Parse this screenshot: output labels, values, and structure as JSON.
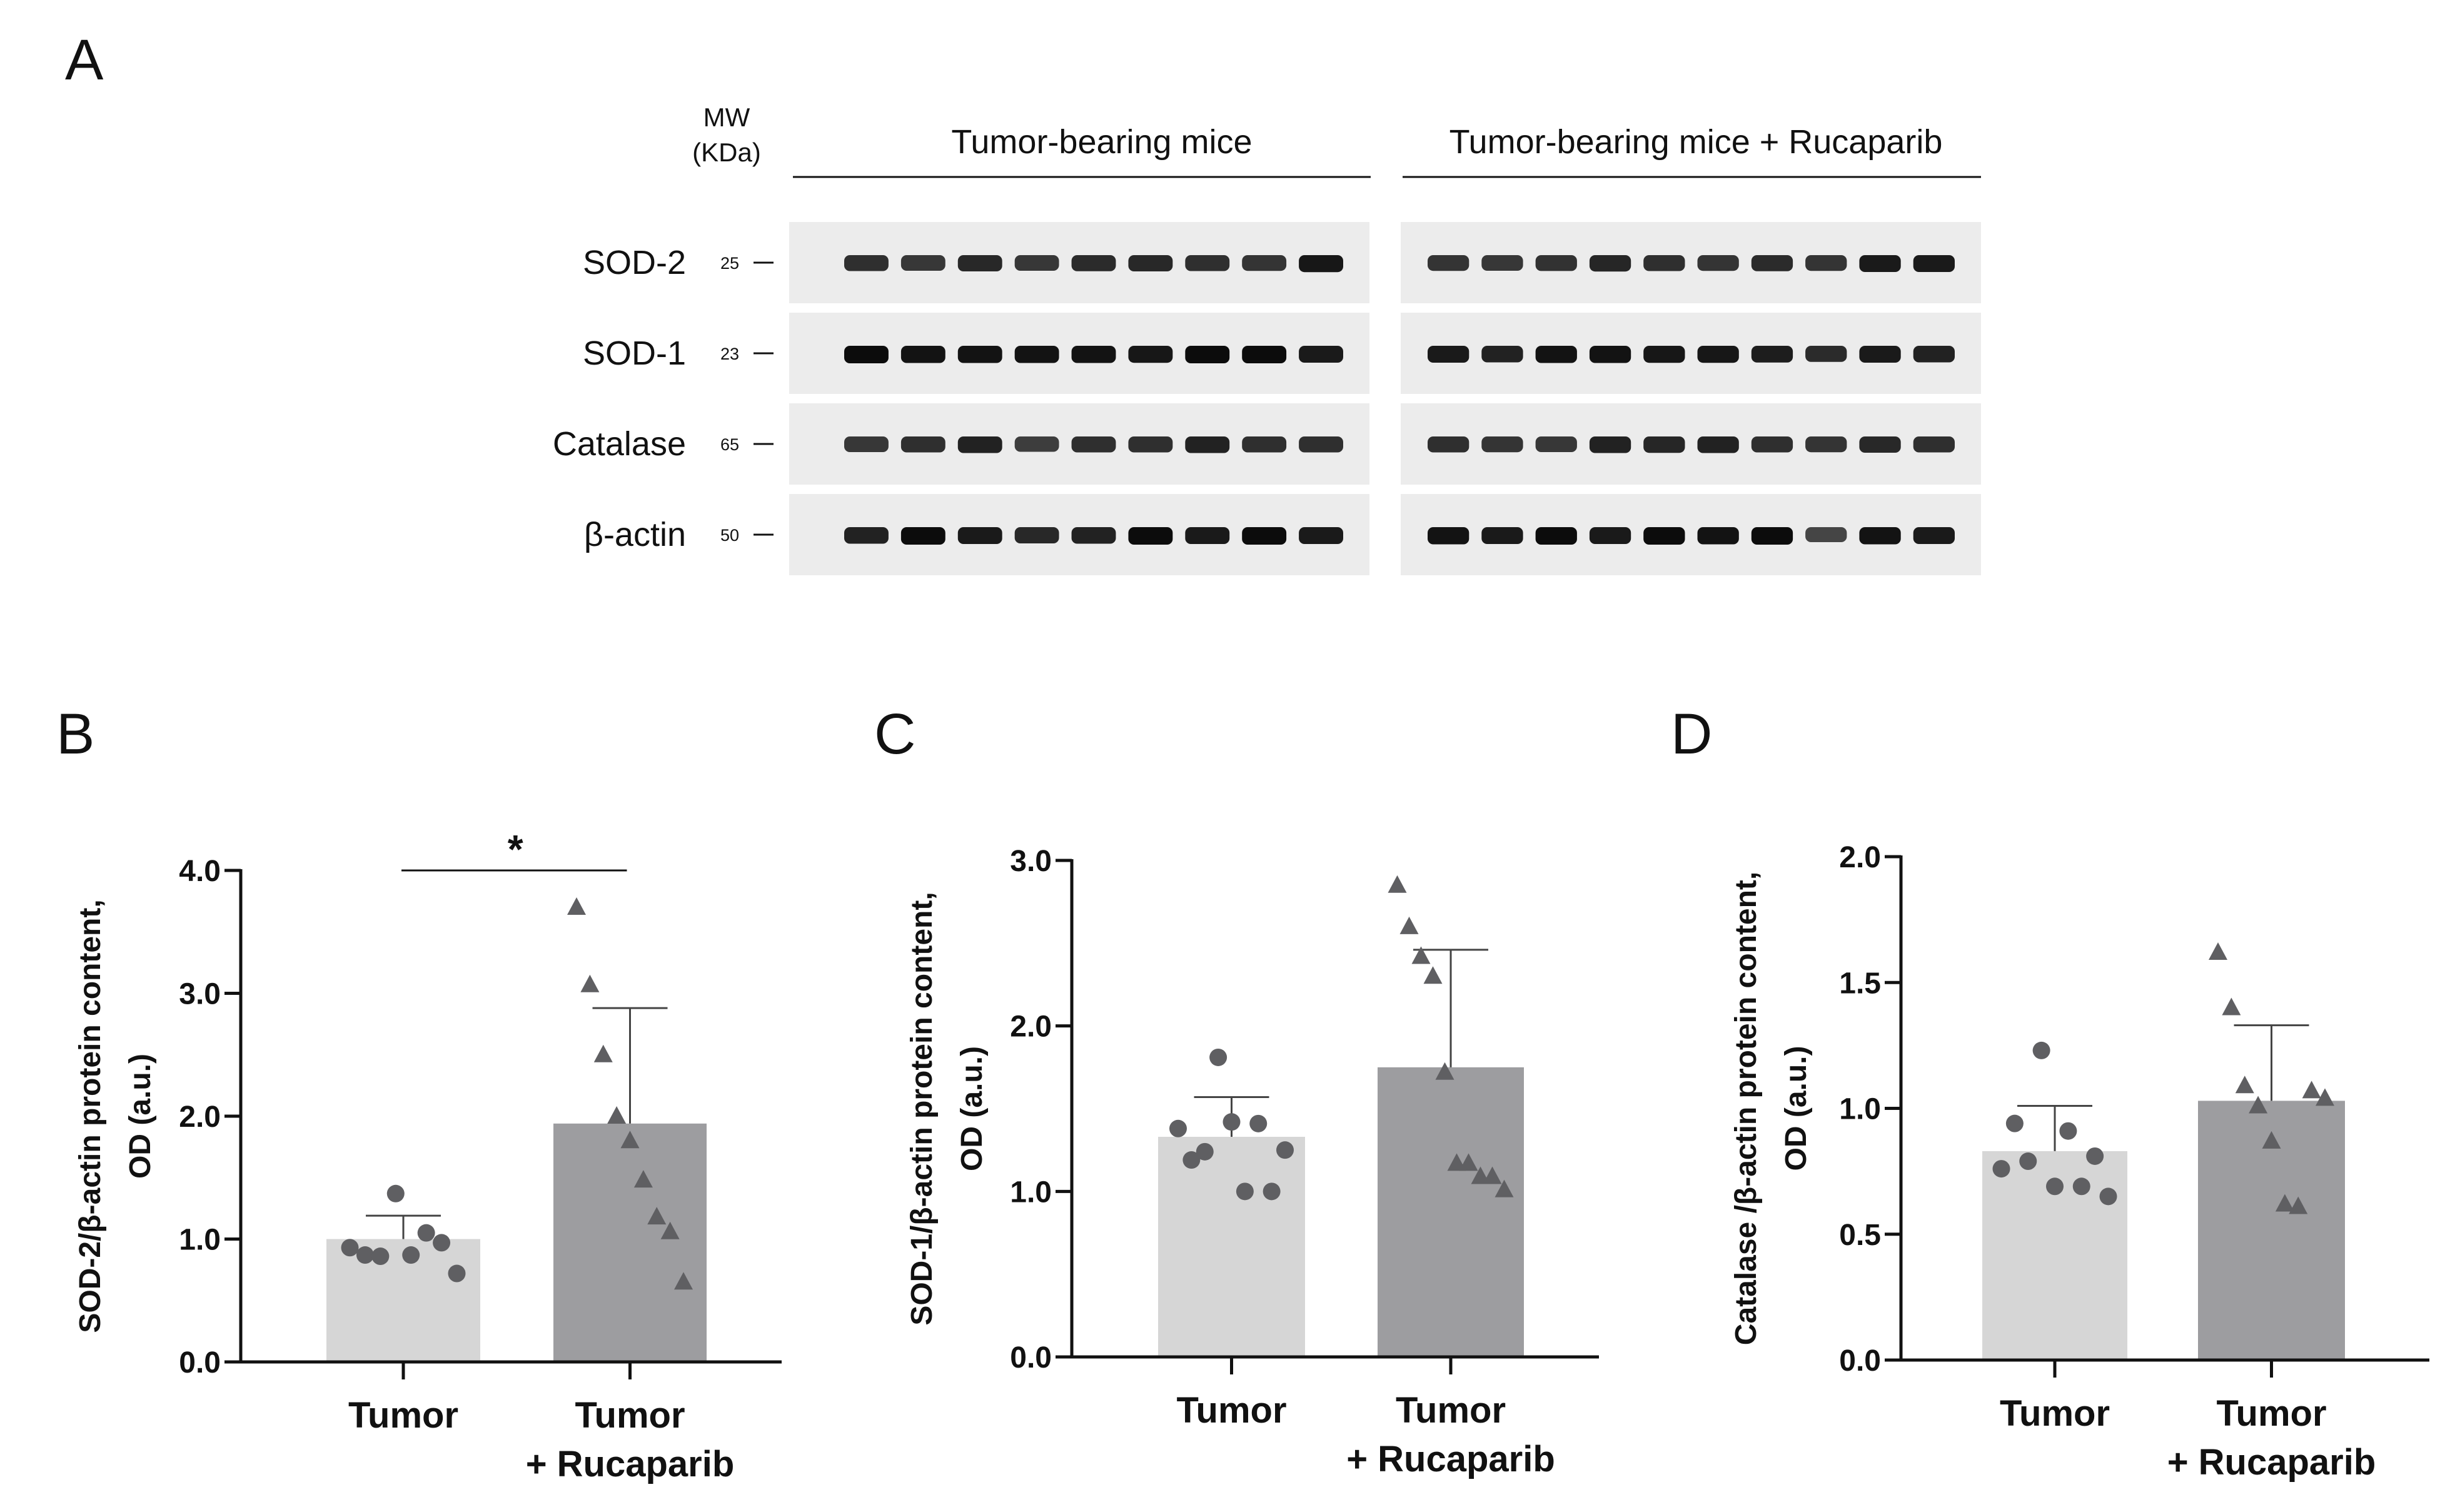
{
  "panel_letters": {
    "a": "A",
    "b": "B",
    "c": "C",
    "d": "D"
  },
  "blot": {
    "mw_header": [
      "MW",
      "(KDa)"
    ],
    "group_left": "Tumor-bearing mice",
    "group_right": "Tumor-bearing mice + Rucaparib",
    "rows": [
      {
        "label": "SOD-2",
        "mw": "25"
      },
      {
        "label": "SOD-1",
        "mw": "23"
      },
      {
        "label": "Catalase",
        "mw": "65"
      },
      {
        "label": "β-actin",
        "mw": "50"
      }
    ],
    "lanes_left": 9,
    "lanes_right": 10
  },
  "chart_data": [
    {
      "type": "bar",
      "panel": "B",
      "ylabel": [
        "SOD-2/β-actin protein content,",
        "OD (a.u.)"
      ],
      "categories": [
        [
          "Tumor"
        ],
        [
          "Tumor",
          "+ Rucaparib"
        ]
      ],
      "ylim": [
        0,
        4.0
      ],
      "yticks": [
        "0.0",
        "1.0",
        "2.0",
        "3.0",
        "4.0"
      ],
      "values": [
        1.0,
        1.94
      ],
      "error": [
        0.19,
        0.94
      ],
      "points": [
        [
          0.93,
          0.87,
          0.86,
          1.37,
          0.87,
          1.05,
          0.97,
          0.72
        ],
        [
          3.7,
          3.07,
          2.5,
          2.0,
          1.8,
          1.48,
          1.18,
          1.06,
          0.65
        ]
      ],
      "markers": [
        "circle",
        "triangle"
      ],
      "colors": [
        "#d6d6d6",
        "#9d9da0"
      ],
      "significance": "*"
    },
    {
      "type": "bar",
      "panel": "C",
      "ylabel": [
        "SOD-1/β-actin protein content,",
        "OD (a.u.)"
      ],
      "categories": [
        [
          "Tumor"
        ],
        [
          "Tumor",
          "+ Rucaparib"
        ]
      ],
      "ylim": [
        0,
        3.0
      ],
      "yticks": [
        "0.0",
        "1.0",
        "2.0",
        "3.0"
      ],
      "values": [
        1.33,
        1.75
      ],
      "error": [
        0.24,
        0.71
      ],
      "points": [
        [
          1.38,
          1.19,
          1.24,
          1.81,
          1.42,
          1.0,
          1.41,
          1.0,
          1.25
        ],
        [
          2.85,
          2.6,
          2.42,
          2.3,
          1.72,
          1.17,
          1.17,
          1.09,
          1.09,
          1.01
        ]
      ],
      "markers": [
        "circle",
        "triangle"
      ],
      "colors": [
        "#d6d6d6",
        "#9d9da0"
      ],
      "significance": ""
    },
    {
      "type": "bar",
      "panel": "D",
      "ylabel": [
        "Catalase /β-actin protein content,",
        "OD (a.u.)"
      ],
      "categories": [
        [
          "Tumor"
        ],
        [
          "Tumor",
          "+ Rucaparib"
        ]
      ],
      "ylim": [
        0,
        2.0
      ],
      "yticks": [
        "0.0",
        "0.5",
        "1.0",
        "1.5",
        "2.0"
      ],
      "values": [
        0.83,
        1.03
      ],
      "error": [
        0.18,
        0.3
      ],
      "points": [
        [
          0.76,
          0.94,
          0.79,
          1.23,
          0.69,
          0.91,
          0.69,
          0.81,
          0.65
        ],
        [
          1.62,
          1.4,
          1.09,
          1.01,
          0.87,
          0.62,
          0.61,
          1.07,
          1.04
        ]
      ],
      "markers": [
        "circle",
        "triangle"
      ],
      "colors": [
        "#d6d6d6",
        "#9d9da0"
      ],
      "significance": ""
    }
  ]
}
